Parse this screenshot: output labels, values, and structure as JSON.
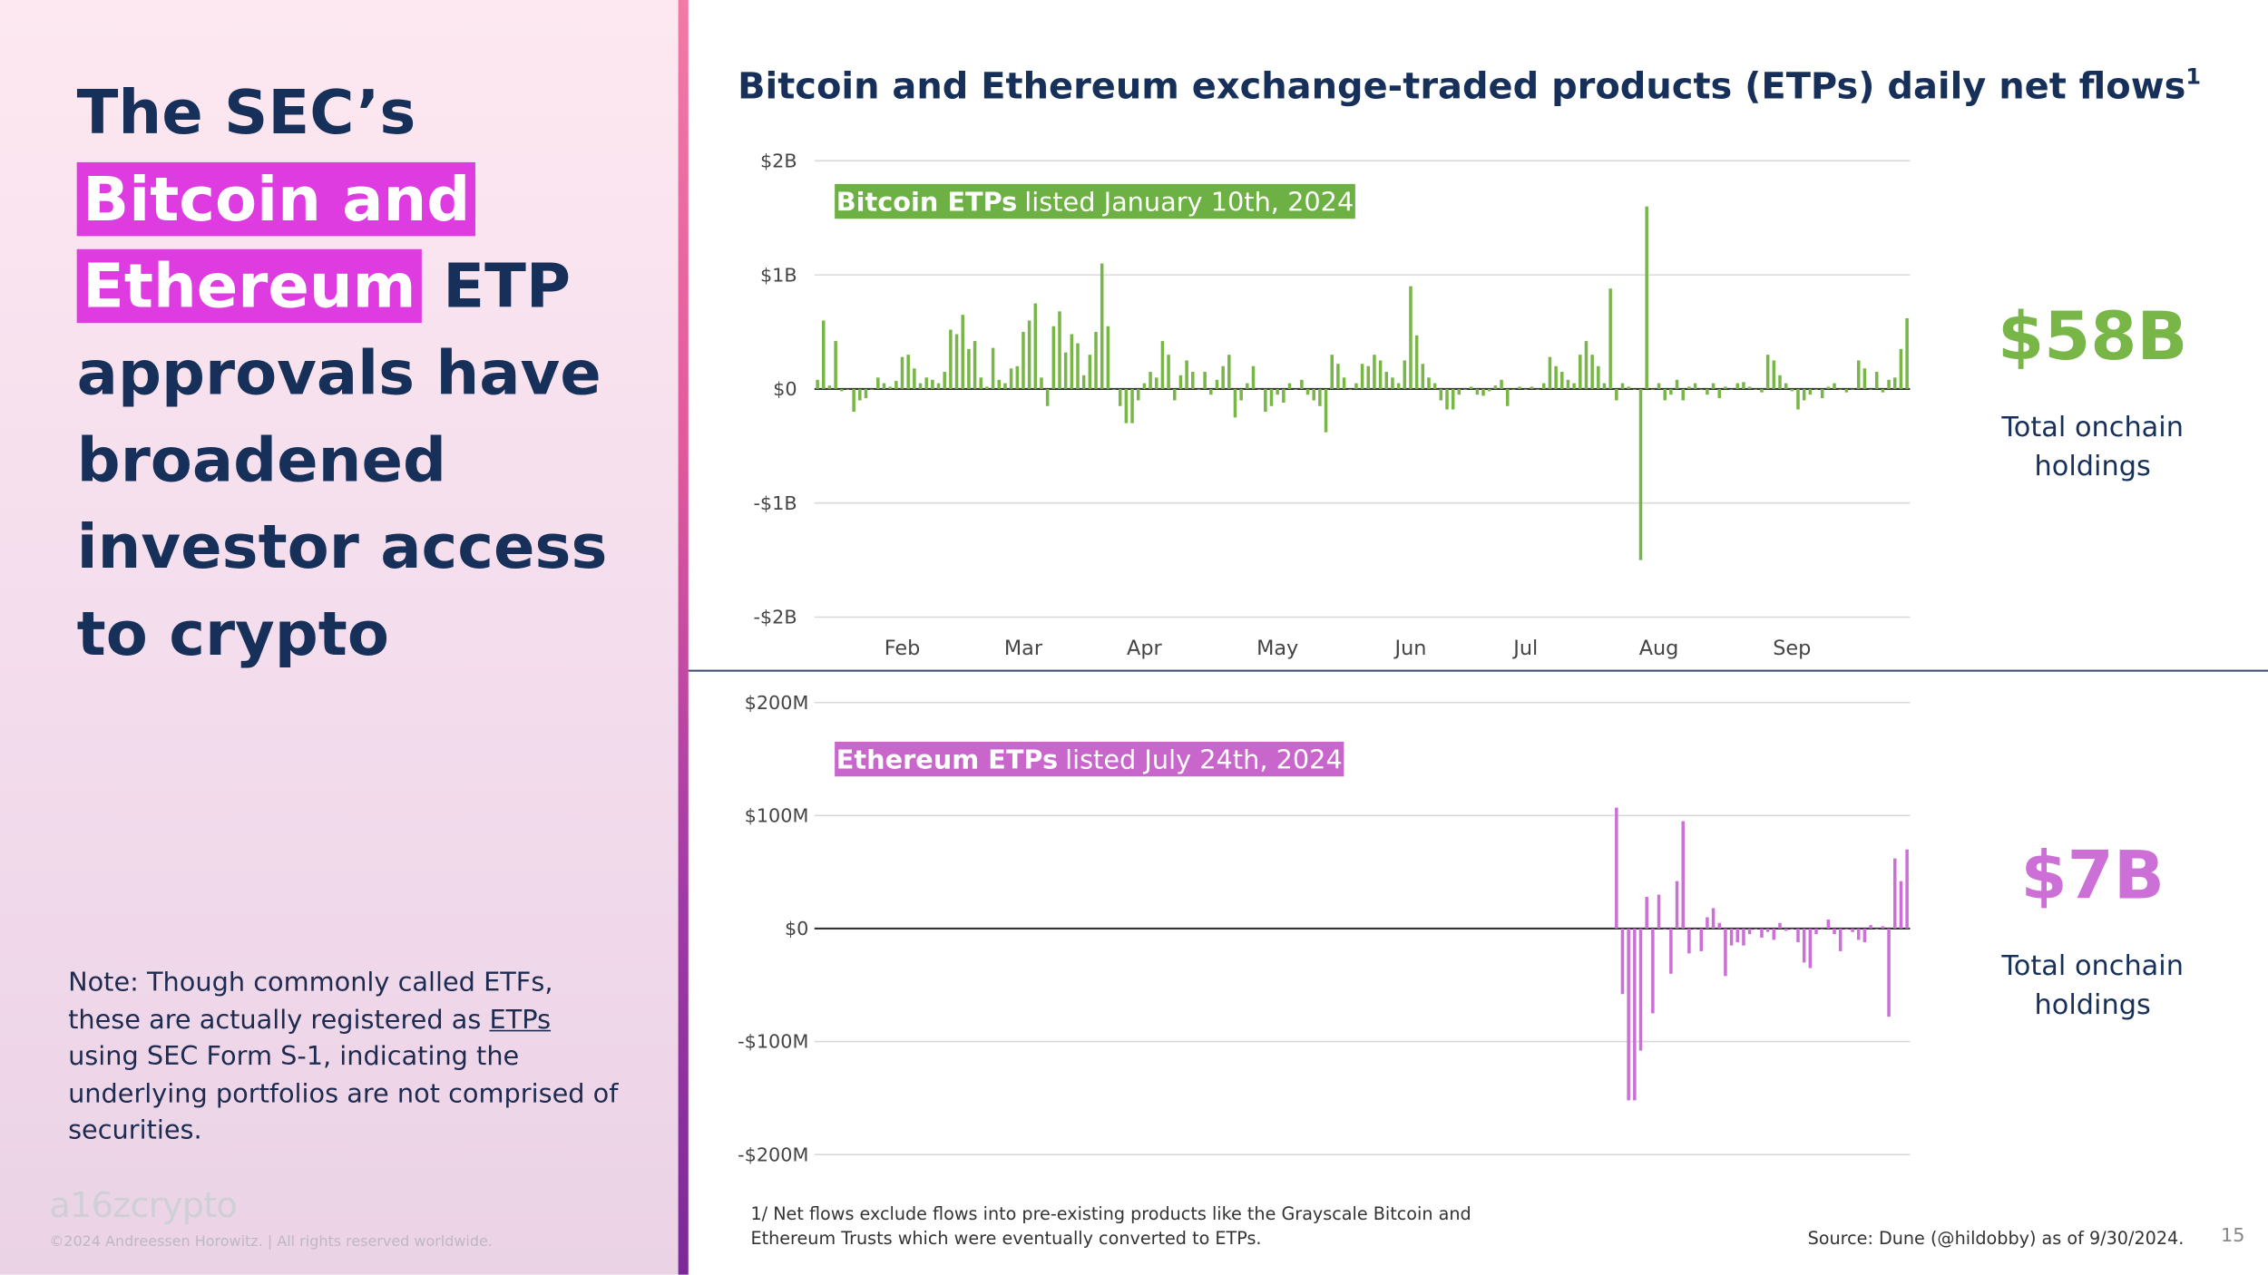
{
  "slide": {
    "heading": {
      "before": "The SEC’s",
      "highlight": "Bitcoin and Ethereum",
      "after": "ETP approvals have broadened investor access to crypto"
    },
    "note": {
      "before": "Note: Though commonly called ETFs, these are actually registered as",
      "link": "ETPs",
      "after": "using SEC Form S-1, indicating the underlying portfolios are not comprised of securities."
    },
    "logo": "a16zcrypto",
    "copyright": "©2024 Andreessen Horowitz. | All rights reserved worldwide.",
    "footnote": "1/ Net flows exclude flows into pre-existing products like the Grayscale Bitcoin and Ethereum Trusts which were eventually converted to ETPs.",
    "source": "Source: Dune (@hildobby) as of 9/30/2024.",
    "page": 15
  },
  "chart_data": [
    {
      "type": "bar",
      "title": "Bitcoin and Ethereum exchange-traded products (ETPs) daily net flows",
      "title_mark": "1",
      "annotation": {
        "bold": "Bitcoin ETPs",
        "text": "listed January 10th, 2024"
      },
      "total": "$58B",
      "total_label": "Total onchain holdings",
      "color": "#78b648",
      "ylim": [
        -2,
        2
      ],
      "yticks": [
        {
          "value": 2,
          "label": "$2B"
        },
        {
          "value": 1,
          "label": "$1B"
        },
        {
          "value": 0,
          "label": "$0"
        },
        {
          "value": -1,
          "label": "-$1B"
        },
        {
          "value": -2,
          "label": "-$2B"
        }
      ],
      "grid": true,
      "categories": [
        null,
        null,
        null,
        null,
        null,
        null,
        null,
        null,
        null,
        null,
        null,
        null,
        null,
        null,
        "Feb",
        null,
        null,
        null,
        null,
        null,
        null,
        null,
        null,
        null,
        null,
        null,
        null,
        null,
        null,
        null,
        null,
        null,
        null,
        null,
        "Mar",
        null,
        null,
        null,
        null,
        null,
        null,
        null,
        null,
        null,
        null,
        null,
        null,
        null,
        null,
        null,
        null,
        null,
        null,
        null,
        "Apr",
        null,
        null,
        null,
        null,
        null,
        null,
        null,
        null,
        null,
        null,
        null,
        null,
        null,
        null,
        null,
        null,
        null,
        null,
        null,
        null,
        null,
        "May",
        null,
        null,
        null,
        null,
        null,
        null,
        null,
        null,
        null,
        null,
        null,
        null,
        null,
        null,
        null,
        null,
        null,
        null,
        null,
        null,
        null,
        "Jun",
        null,
        null,
        null,
        null,
        null,
        null,
        null,
        null,
        null,
        null,
        null,
        null,
        null,
        null,
        null,
        null,
        null,
        null,
        "Jul",
        null,
        null,
        null,
        null,
        null,
        null,
        null,
        null,
        null,
        null,
        null,
        null,
        null,
        null,
        null,
        null,
        null,
        null,
        null,
        null,
        null,
        "Aug",
        null,
        null,
        null,
        null,
        null,
        null,
        null,
        null,
        null,
        null,
        null,
        null,
        null,
        null,
        null,
        null,
        null,
        null,
        null,
        null,
        null,
        "Sep",
        null,
        null,
        null,
        null,
        null,
        null,
        null,
        null,
        null,
        null,
        null,
        null,
        null,
        null,
        null,
        null,
        null,
        null,
        null
      ],
      "values": [
        0.08,
        0.6,
        0.03,
        0.42,
        -0.02,
        0,
        -0.2,
        -0.1,
        -0.08,
        0,
        0.1,
        0.05,
        0.02,
        0.07,
        0.28,
        0.3,
        0.18,
        0.05,
        0.1,
        0.08,
        0.05,
        0.15,
        0.52,
        0.48,
        0.65,
        0.35,
        0.42,
        0.1,
        0.02,
        0.36,
        0.08,
        0.05,
        0.18,
        0.2,
        0.5,
        0.6,
        0.75,
        0.1,
        -0.15,
        0.55,
        0.68,
        0.32,
        0.48,
        0.4,
        0.12,
        0.3,
        0.5,
        1.1,
        0.55,
        0,
        -0.15,
        -0.3,
        -0.3,
        -0.1,
        0.05,
        0.15,
        0.1,
        0.42,
        0.3,
        -0.1,
        0.12,
        0.25,
        0.15,
        0,
        0.15,
        -0.05,
        0.08,
        0.2,
        0.3,
        -0.25,
        -0.1,
        0.05,
        0.2,
        0,
        -0.2,
        -0.15,
        -0.05,
        -0.12,
        0.05,
        0,
        0.08,
        -0.05,
        -0.1,
        -0.15,
        -0.38,
        0.3,
        0.22,
        0.1,
        0,
        0.05,
        0.22,
        0.2,
        0.3,
        0.25,
        0.15,
        0.1,
        0.05,
        0.25,
        0.9,
        0.47,
        0.22,
        0.1,
        0.05,
        -0.1,
        -0.18,
        -0.18,
        -0.05,
        0,
        0.02,
        -0.05,
        -0.06,
        -0.02,
        0.03,
        0.08,
        -0.15,
        0,
        0.02,
        0,
        0.02,
        0,
        0.05,
        0.28,
        0.2,
        0.15,
        0.08,
        0.05,
        0.3,
        0.42,
        0.3,
        0.2,
        0.05,
        0.88,
        -0.1,
        0.05,
        0.02,
        0,
        -1.5,
        1.6,
        0,
        0.05,
        -0.1,
        -0.05,
        0.08,
        -0.1,
        0.02,
        0.05,
        0,
        -0.05,
        0.05,
        -0.08,
        0.02,
        0,
        0.05,
        0.06,
        0.02,
        0,
        -0.03,
        0.3,
        0.25,
        0.12,
        0.05,
        -0.02,
        -0.18,
        -0.1,
        -0.05,
        0,
        -0.08,
        0.02,
        0.05,
        0,
        -0.03,
        0,
        0.25,
        0.18,
        0,
        0.15,
        -0.03,
        0.08,
        0.1,
        0.35,
        0.62
      ]
    },
    {
      "type": "bar",
      "annotation": {
        "bold": "Ethereum ETPs",
        "text": "listed July 24th, 2024"
      },
      "total": "$7B",
      "total_label": "Total onchain holdings",
      "color": "#cc6fd6",
      "ylim": [
        -200,
        200
      ],
      "yticks": [
        {
          "value": 200,
          "label": "$200M"
        },
        {
          "value": 100,
          "label": "$100M"
        },
        {
          "value": 0,
          "label": "$0"
        },
        {
          "value": -100,
          "label": "-$100M"
        },
        {
          "value": -200,
          "label": "-$200M"
        }
      ],
      "grid": true,
      "values": [
        null,
        null,
        null,
        null,
        null,
        null,
        null,
        null,
        null,
        null,
        null,
        null,
        null,
        null,
        null,
        null,
        null,
        null,
        null,
        null,
        null,
        null,
        null,
        null,
        null,
        null,
        null,
        null,
        null,
        null,
        null,
        null,
        null,
        null,
        null,
        null,
        null,
        null,
        null,
        null,
        null,
        null,
        null,
        null,
        null,
        null,
        null,
        null,
        null,
        null,
        null,
        null,
        null,
        null,
        null,
        null,
        null,
        null,
        null,
        null,
        null,
        null,
        null,
        null,
        null,
        null,
        null,
        null,
        null,
        null,
        null,
        null,
        null,
        null,
        null,
        null,
        null,
        null,
        null,
        null,
        null,
        null,
        null,
        null,
        null,
        null,
        null,
        null,
        null,
        null,
        null,
        null,
        null,
        null,
        null,
        null,
        null,
        null,
        null,
        null,
        null,
        null,
        null,
        null,
        null,
        null,
        null,
        null,
        null,
        null,
        null,
        null,
        null,
        null,
        null,
        null,
        null,
        null,
        null,
        null,
        null,
        null,
        null,
        null,
        null,
        null,
        null,
        null,
        null,
        null,
        null,
        null,
        107,
        -58,
        -152,
        -152,
        -108,
        28,
        -75,
        30,
        0,
        -40,
        42,
        95,
        -22,
        0,
        -20,
        10,
        18,
        5,
        -42,
        -15,
        -12,
        -15,
        -5,
        0,
        -8,
        -3,
        -10,
        5,
        -2,
        0,
        -12,
        -30,
        -35,
        -5,
        0,
        8,
        -5,
        -20,
        0,
        -3,
        -10,
        -12,
        3,
        0,
        2,
        -78,
        62,
        42,
        70
      ]
    }
  ]
}
